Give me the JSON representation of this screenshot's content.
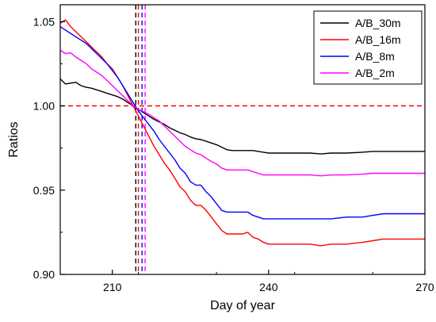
{
  "chart_data": {
    "type": "line",
    "xlabel": "Day of year",
    "ylabel": "Ratios",
    "xlim": [
      200,
      270
    ],
    "ylim": [
      0.9,
      1.06
    ],
    "x_ticks": [
      210,
      240,
      270
    ],
    "x_tick_labels": [
      "210",
      "240",
      "270"
    ],
    "y_ticks": [
      0.9,
      0.95,
      1.0,
      1.05
    ],
    "y_tick_labels": [
      "0.90",
      "0.95",
      "1.00",
      "1.05"
    ],
    "grid": false,
    "legend_position": "top-right",
    "reference_lines": [
      {
        "orientation": "horizontal",
        "value": 1.0,
        "color": "#ff0000",
        "style": "dashed"
      },
      {
        "orientation": "vertical",
        "value": 214.5,
        "color": "#000000",
        "style": "dashed"
      },
      {
        "orientation": "vertical",
        "value": 215.0,
        "color": "#ff0000",
        "style": "dashed"
      },
      {
        "orientation": "vertical",
        "value": 215.7,
        "color": "#0000ff",
        "style": "dashed"
      },
      {
        "orientation": "vertical",
        "value": 216.3,
        "color": "#ff00ff",
        "style": "dashed"
      }
    ],
    "series": [
      {
        "name": "A/B_30m",
        "color": "#000000",
        "x": [
          200,
          201,
          202,
          203,
          204,
          205,
          206,
          207,
          208,
          209,
          210,
          211,
          212,
          213,
          214,
          215,
          216,
          217,
          218,
          219,
          220,
          221,
          222,
          223,
          224,
          225,
          226,
          227,
          228,
          229,
          230,
          231,
          232,
          233,
          234,
          235,
          236,
          237,
          238,
          239,
          240,
          242,
          245,
          248,
          250,
          252,
          255,
          258,
          260,
          262,
          265,
          268,
          270
        ],
        "y": [
          1.016,
          1.013,
          1.0135,
          1.014,
          1.012,
          1.011,
          1.0105,
          1.0095,
          1.0085,
          1.0075,
          1.0065,
          1.0055,
          1.004,
          1.002,
          1.0,
          0.998,
          0.996,
          0.994,
          0.992,
          0.9905,
          0.989,
          0.987,
          0.9855,
          0.984,
          0.983,
          0.9815,
          0.9805,
          0.98,
          0.979,
          0.978,
          0.977,
          0.9755,
          0.974,
          0.9735,
          0.9735,
          0.9735,
          0.9735,
          0.9735,
          0.973,
          0.9725,
          0.972,
          0.972,
          0.972,
          0.972,
          0.9715,
          0.972,
          0.972,
          0.9725,
          0.973,
          0.973,
          0.973,
          0.973,
          0.973
        ]
      },
      {
        "name": "A/B_16m",
        "color": "#ff0000",
        "x": [
          200,
          201,
          202,
          203,
          204,
          205,
          206,
          207,
          208,
          209,
          210,
          211,
          212,
          213,
          214,
          215,
          216,
          217,
          218,
          219,
          220,
          221,
          222,
          223,
          224,
          225,
          226,
          227,
          228,
          229,
          230,
          231,
          232,
          233,
          234,
          235,
          236,
          237,
          238,
          239,
          240,
          242,
          245,
          248,
          250,
          252,
          255,
          258,
          260,
          262,
          265,
          268,
          270
        ],
        "y": [
          1.049,
          1.051,
          1.047,
          1.044,
          1.041,
          1.038,
          1.035,
          1.032,
          1.029,
          1.025,
          1.022,
          1.017,
          1.012,
          1.006,
          1.0,
          0.994,
          0.988,
          0.982,
          0.976,
          0.971,
          0.966,
          0.962,
          0.957,
          0.952,
          0.949,
          0.944,
          0.941,
          0.941,
          0.938,
          0.934,
          0.93,
          0.926,
          0.924,
          0.924,
          0.924,
          0.924,
          0.925,
          0.922,
          0.921,
          0.919,
          0.918,
          0.918,
          0.918,
          0.918,
          0.917,
          0.918,
          0.918,
          0.919,
          0.92,
          0.921,
          0.921,
          0.921,
          0.921
        ]
      },
      {
        "name": "A/B_8m",
        "color": "#0000ff",
        "x": [
          200,
          201,
          202,
          203,
          204,
          205,
          206,
          207,
          208,
          209,
          210,
          211,
          212,
          213,
          214,
          215,
          216,
          217,
          218,
          219,
          220,
          221,
          222,
          223,
          224,
          225,
          226,
          227,
          228,
          229,
          230,
          231,
          232,
          233,
          234,
          235,
          236,
          237,
          238,
          239,
          240,
          242,
          245,
          248,
          250,
          252,
          255,
          258,
          260,
          262,
          265,
          268,
          270
        ],
        "y": [
          1.047,
          1.045,
          1.043,
          1.041,
          1.039,
          1.037,
          1.034,
          1.031,
          1.028,
          1.025,
          1.021,
          1.017,
          1.012,
          1.007,
          1.002,
          0.997,
          0.993,
          0.989,
          0.985,
          0.98,
          0.976,
          0.972,
          0.968,
          0.963,
          0.96,
          0.955,
          0.953,
          0.953,
          0.949,
          0.946,
          0.942,
          0.938,
          0.937,
          0.937,
          0.937,
          0.937,
          0.937,
          0.935,
          0.934,
          0.933,
          0.933,
          0.933,
          0.933,
          0.933,
          0.933,
          0.933,
          0.934,
          0.934,
          0.935,
          0.936,
          0.936,
          0.936,
          0.936
        ]
      },
      {
        "name": "A/B_2m",
        "color": "#ff00ff",
        "x": [
          200,
          201,
          202,
          203,
          204,
          205,
          206,
          207,
          208,
          209,
          210,
          211,
          212,
          213,
          214,
          215,
          216,
          217,
          218,
          219,
          220,
          221,
          222,
          223,
          224,
          225,
          226,
          227,
          228,
          229,
          230,
          231,
          232,
          233,
          234,
          235,
          236,
          237,
          238,
          239,
          240,
          242,
          245,
          248,
          250,
          252,
          255,
          258,
          260,
          262,
          265,
          268,
          270
        ],
        "y": [
          1.033,
          1.031,
          1.0315,
          1.029,
          1.027,
          1.025,
          1.022,
          1.02,
          1.018,
          1.015,
          1.012,
          1.009,
          1.006,
          1.003,
          1.0,
          0.998,
          0.9965,
          0.995,
          0.993,
          0.991,
          0.988,
          0.985,
          0.982,
          0.979,
          0.976,
          0.974,
          0.972,
          0.971,
          0.969,
          0.967,
          0.9655,
          0.963,
          0.962,
          0.962,
          0.962,
          0.962,
          0.962,
          0.961,
          0.96,
          0.959,
          0.959,
          0.959,
          0.959,
          0.959,
          0.9585,
          0.959,
          0.959,
          0.9595,
          0.96,
          0.96,
          0.96,
          0.96,
          0.96
        ]
      }
    ]
  }
}
